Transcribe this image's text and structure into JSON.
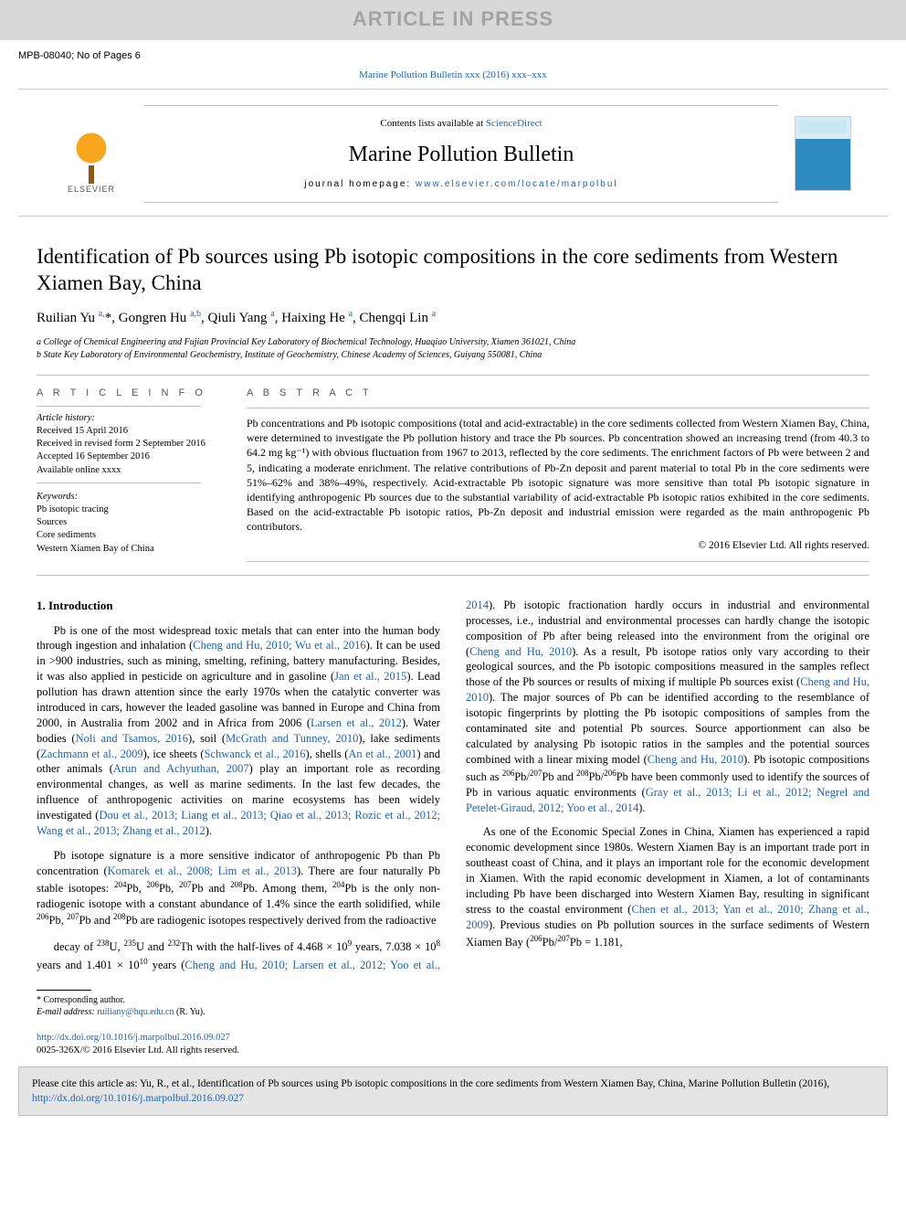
{
  "banner": {
    "text": "ARTICLE IN PRESS"
  },
  "refLine": "MPB-08040; No of Pages 6",
  "topJournalRef": "Marine Pollution Bulletin xxx (2016) xxx–xxx",
  "header": {
    "logoText": "ELSEVIER",
    "contentsPrefix": "Contents lists available at ",
    "contentsLink": "ScienceDirect",
    "journalName": "Marine Pollution Bulletin",
    "homepagePrefix": "journal homepage: ",
    "homepageLink": "www.elsevier.com/locate/marpolbul"
  },
  "title": "Identification of Pb sources using Pb isotopic compositions in the core sediments from Western Xiamen Bay, China",
  "authors": "Ruilian Yu <sup>a,</sup>*, Gongren Hu <sup>a,b</sup>, Qiuli Yang <sup>a</sup>, Haixing He <sup>a</sup>, Chengqi Lin <sup>a</sup>",
  "affiliations": [
    "a  College of Chemical Engineering and Fujian Provincial Key Laboratory of Biochemical Technology, Huaqiao University, Xiamen 361021, China",
    "b  State Key Laboratory of Environmental Geochemistry, Institute of Geochemistry, Chinese Academy of Sciences, Guiyang 550081, China"
  ],
  "info": {
    "headArticle": "A R T I C L E   I N F O",
    "historyHead": "Article history:",
    "history": [
      "Received 15 April 2016",
      "Received in revised form 2 September 2016",
      "Accepted 16 September 2016",
      "Available online xxxx"
    ],
    "keywordsHead": "Keywords:",
    "keywords": [
      "Pb isotopic tracing",
      "Sources",
      "Core sediments",
      "Western Xiamen Bay of China"
    ]
  },
  "abstract": {
    "head": "A B S T R A C T",
    "text": "Pb concentrations and Pb isotopic compositions (total and acid-extractable) in the core sediments collected from Western Xiamen Bay, China, were determined to investigate the Pb pollution history and trace the Pb sources. Pb concentration showed an increasing trend (from 40.3 to 64.2 mg kg⁻¹) with obvious fluctuation from 1967 to 2013, reflected by the core sediments. The enrichment factors of Pb were between 2 and 5, indicating a moderate enrichment. The relative contributions of Pb-Zn deposit and parent material to total Pb in the core sediments were 51%–62% and 38%–49%, respectively. Acid-extractable Pb isotopic signature was more sensitive than total Pb isotopic signature in identifying anthropogenic Pb sources due to the substantial variability of acid-extractable Pb isotopic ratios exhibited in the core sediments. Based on the acid-extractable Pb isotopic ratios, Pb-Zn deposit and industrial emission were regarded as the main anthropogenic Pb contributors.",
    "copyright": "© 2016 Elsevier Ltd. All rights reserved."
  },
  "introHead": "1. Introduction",
  "para1": "Pb is one of the most widespread toxic metals that can enter into the human body through ingestion and inhalation (<span class='cite'>Cheng and Hu, 2010; Wu et al., 2016</span>). It can be used in >900 industries, such as mining, smelting, refining, battery manufacturing. Besides, it was also applied in pesticide on agriculture and in gasoline (<span class='cite'>Jan et al., 2015</span>). Lead pollution has drawn attention since the early 1970s when the catalytic converter was introduced in cars, however the leaded gasoline was banned in Europe and China from 2000, in Australia from 2002 and in Africa from 2006 (<span class='cite'>Larsen et al., 2012</span>). Water bodies (<span class='cite'>Noli and Tsamos, 2016</span>), soil (<span class='cite'>McGrath and Tunney, 2010</span>), lake sediments (<span class='cite'>Zachmann et al., 2009</span>), ice sheets (<span class='cite'>Schwanck et al., 2016</span>), shells (<span class='cite'>An et al., 2001</span>) and other animals (<span class='cite'>Arun and Achyuthan, 2007</span>) play an important role as recording environmental changes, as well as marine sediments. In the last few decades, the influence of anthropogenic activities on marine ecosystems has been widely investigated (<span class='cite'>Dou et al., 2013; Liang et al., 2013; Qiao et al., 2013; Rozic et al., 2012; Wang et al., 2013; Zhang et al., 2012</span>).",
  "para2": "Pb isotope signature is a more sensitive indicator of anthropogenic Pb than Pb concentration (<span class='cite'>Komarek et al., 2008; Lim et al., 2013</span>). There are four naturally Pb stable isotopes: <sup>204</sup>Pb, <sup>206</sup>Pb, <sup>207</sup>Pb and <sup>208</sup>Pb. Among them, <sup>204</sup>Pb is the only non-radiogenic isotope with a constant abundance of 1.4% since the earth solidified, while <sup>206</sup>Pb, <sup>207</sup>Pb and <sup>208</sup>Pb are radiogenic isotopes respectively derived from the radioactive",
  "para3": "decay of <sup>238</sup>U, <sup>235</sup>U and <sup>232</sup>Th with the half-lives of 4.468 × 10<sup>9</sup> years, 7.038 × 10<sup>8</sup> years and 1.401 × 10<sup>10</sup> years (<span class='cite'>Cheng and Hu, 2010; Larsen et al., 2012; Yoo et al., 2014</span>). Pb isotopic fractionation hardly occurs in industrial and environmental processes, i.e., industrial and environmental processes can hardly change the isotopic composition of Pb after being released into the environment from the original ore (<span class='cite'>Cheng and Hu, 2010</span>). As a result, Pb isotope ratios only vary according to their geological sources, and the Pb isotopic compositions measured in the samples reflect those of the Pb sources or results of mixing if multiple Pb sources exist (<span class='cite'>Cheng and Hu, 2010</span>). The major sources of Pb can be identified according to the resemblance of isotopic fingerprints by plotting the Pb isotopic compositions of samples from the contaminated site and potential Pb sources. Source apportionment can also be calculated by analysing Pb isotopic ratios in the samples and the potential sources combined with a linear mixing model (<span class='cite'>Cheng and Hu, 2010</span>). Pb isotopic compositions such as <sup>206</sup>Pb/<sup>207</sup>Pb and <sup>208</sup>Pb/<sup>206</sup>Pb have been commonly used to identify the sources of Pb in various aquatic environments (<span class='cite'>Gray et al., 2013; Li et al., 2012; Negrel and Petelet-Giraud, 2012; Yoo et al., 2014</span>).",
  "para4": "As one of the Economic Special Zones in China, Xiamen has experienced a rapid economic development since 1980s. Western Xiamen Bay is an important trade port in southeast coast of China, and it plays an important role for the economic development in Xiamen. With the rapid economic development in Xiamen, a lot of contaminants including Pb have been discharged into Western Xiamen Bay, resulting in significant stress to the coastal environment (<span class='cite'>Chen et al., 2013; Yan et al., 2010; Zhang et al., 2009</span>). Previous studies on Pb pollution sources in the surface sediments of Western Xiamen Bay (<sup>206</sup>Pb/<sup>207</sup>Pb = 1.181,",
  "footnote": {
    "corr": "* Corresponding author.",
    "emailLabel": "E-mail address: ",
    "email": "ruiliany@hqu.edu.cn",
    "emailSuffix": " (R. Yu)."
  },
  "doi": {
    "url": "http://dx.doi.org/10.1016/j.marpolbul.2016.09.027",
    "issn": "0025-326X/© 2016 Elsevier Ltd. All rights reserved."
  },
  "citeBox": {
    "text": "Please cite this article as: Yu, R., et al., Identification of Pb sources using Pb isotopic compositions in the core sediments from Western Xiamen Bay, China, Marine Pollution Bulletin (2016), ",
    "link": "http://dx.doi.org/10.1016/j.marpolbul.2016.09.027"
  },
  "colors": {
    "link": "#1b63b3",
    "bannerBg": "#d8d8d8",
    "bannerText": "#a3a3a3",
    "rule": "#bcbcbc",
    "citeBoxBg": "#e5e5e5"
  },
  "typography": {
    "title_fontsize": 23,
    "journal_fontsize": 24,
    "body_fontsize": 12.5,
    "abstract_fontsize": 12,
    "info_fontsize": 10.5,
    "affil_fontsize": 10
  }
}
